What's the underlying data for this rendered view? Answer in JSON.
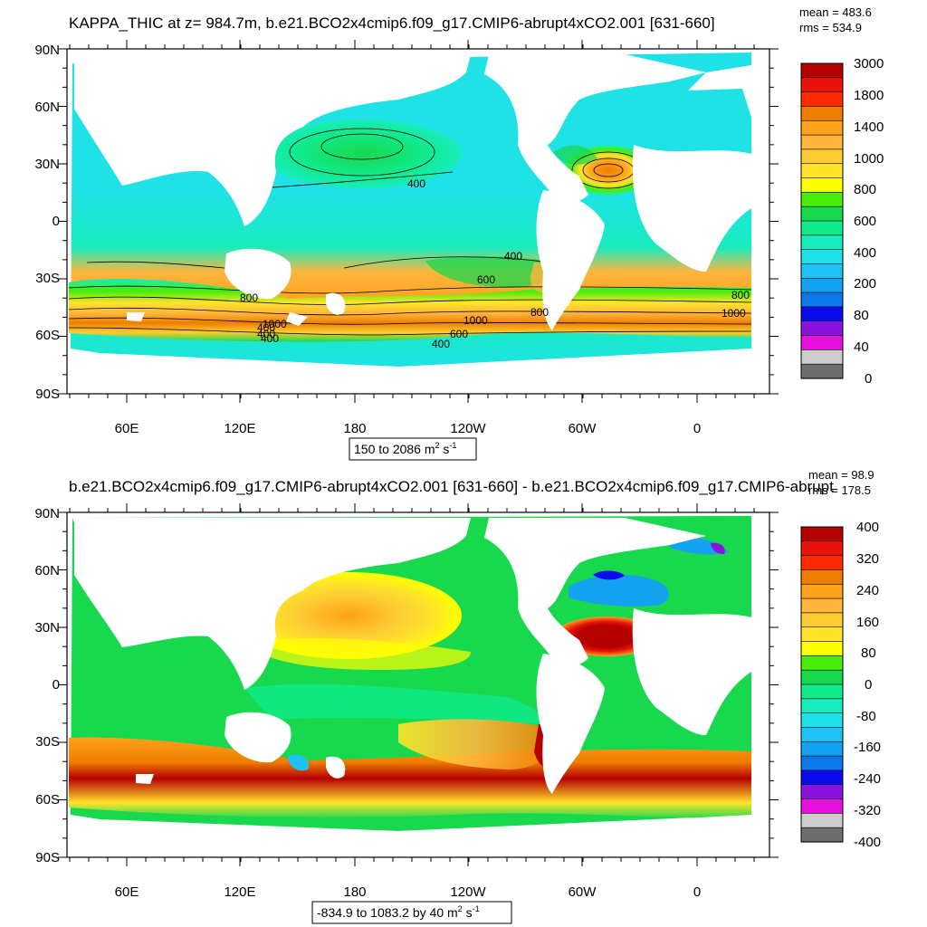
{
  "panels": [
    {
      "title": "KAPPA_THIC at z= 984.7m, b.e21.BCO2x4cmip6.f09_g17.CMIP6-abrupt4xCO2.001 [631-660]",
      "stats": {
        "mean": "mean = 483.6",
        "rms": "rms = 534.9"
      },
      "lat_labels": [
        "90N",
        "60N",
        "30N",
        "0",
        "30S",
        "60S",
        "90S"
      ],
      "lon_labels": [
        "60E",
        "120E",
        "180",
        "120W",
        "60W",
        "0"
      ],
      "range_text": "150 to 2086 m",
      "units_sup1": "2",
      "units_s": " s",
      "units_sup2": "-1",
      "colorbar": {
        "labels": [
          "3000",
          "1800",
          "1400",
          "1000",
          "800",
          "600",
          "400",
          "200",
          "80",
          "40",
          "0"
        ],
        "colors": [
          "#b50000",
          "#e8140c",
          "#ff2a00",
          "#ee7e00",
          "#ffa11a",
          "#ffb53e",
          "#fccc32",
          "#ffe42a",
          "#ffff00",
          "#48ec08",
          "#18d84e",
          "#10ea88",
          "#18ecbe",
          "#1ee2e6",
          "#1ec2f4",
          "#14a2f0",
          "#0c78ec",
          "#0a0aee",
          "#8a14de",
          "#e610dc",
          "#cccccc",
          "#6e6e6e"
        ]
      },
      "contour_labels": [
        "400",
        "400",
        "600",
        "800",
        "800",
        "1000",
        "1000",
        "1000",
        "800",
        "600",
        "400",
        "400",
        "400",
        "400"
      ]
    },
    {
      "title": "b.e21.BCO2x4cmip6.f09_g17.CMIP6-abrupt4xCO2.001 [631-660] - b.e21.BCO2x4cmip6.f09_g17.CMIP6-abrupt",
      "stats": {
        "mean": "mean = 98.9",
        "rms": "rms = 178.5"
      },
      "lat_labels": [
        "90N",
        "60N",
        "30N",
        "0",
        "30S",
        "60S",
        "90S"
      ],
      "lon_labels": [
        "60E",
        "120E",
        "180",
        "120W",
        "60W",
        "0"
      ],
      "range_text": "-834.9 to 1083.2 by 40 m",
      "units_sup1": "2",
      "units_s": " s",
      "units_sup2": "-1",
      "colorbar": {
        "labels": [
          "400",
          "320",
          "240",
          "160",
          "80",
          "0",
          "-80",
          "-160",
          "-240",
          "-320",
          "-400"
        ],
        "colors": [
          "#b50000",
          "#e8140c",
          "#ff2a00",
          "#ee7e00",
          "#ffa11a",
          "#ffb53e",
          "#fccc32",
          "#ffe42a",
          "#ffff00",
          "#48ec08",
          "#18d84e",
          "#10ea88",
          "#18ecbe",
          "#1ee2e6",
          "#1ec2f4",
          "#14a2f0",
          "#0c78ec",
          "#0a0aee",
          "#8a14de",
          "#e610dc",
          "#cccccc",
          "#6e6e6e"
        ]
      }
    }
  ]
}
